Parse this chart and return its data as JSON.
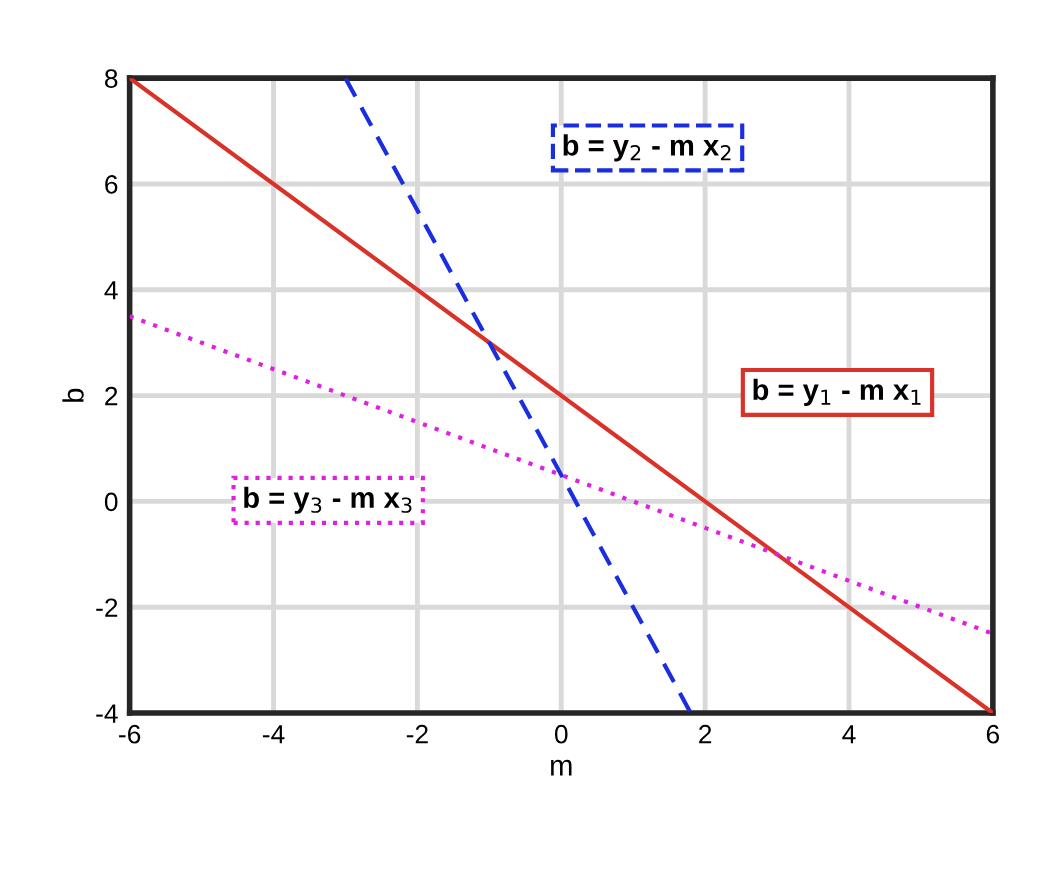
{
  "chart_data": {
    "type": "line",
    "xlabel": "m",
    "ylabel": "b",
    "xlim": [
      -6,
      6
    ],
    "ylim": [
      -4,
      8
    ],
    "xticks": [
      -6,
      -4,
      -2,
      0,
      2,
      4,
      6
    ],
    "yticks": [
      -4,
      -2,
      0,
      2,
      4,
      6,
      8
    ],
    "grid": true,
    "series": [
      {
        "name": "b = y$_{1}$ - m x$_{1}$",
        "color": "#d93228",
        "line_style": "solid",
        "x": [
          -6,
          6
        ],
        "values": [
          8,
          -4
        ]
      },
      {
        "name": "b = y$_{2}$ - m x$_{2}$",
        "color": "#1a2ee0",
        "line_style": "dashed",
        "x": [
          -3,
          1.8
        ],
        "values": [
          8,
          -4
        ]
      },
      {
        "name": "b = y$_{3}$ - m x$_{3}$",
        "color": "#e020e0",
        "line_style": "dotted",
        "x": [
          -6,
          6
        ],
        "values": [
          3.5,
          -2.5
        ]
      }
    ]
  }
}
